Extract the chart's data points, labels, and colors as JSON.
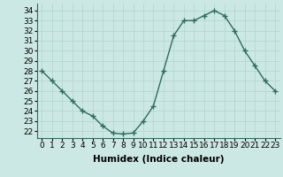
{
  "x": [
    0,
    1,
    2,
    3,
    4,
    5,
    6,
    7,
    8,
    9,
    10,
    11,
    12,
    13,
    14,
    15,
    16,
    17,
    18,
    19,
    20,
    21,
    22,
    23
  ],
  "y": [
    28,
    27,
    26,
    25,
    24,
    23.5,
    22.5,
    21.8,
    21.7,
    21.8,
    23,
    24.5,
    28,
    31.5,
    33,
    33,
    33.5,
    34,
    33.5,
    32,
    30,
    28.5,
    27,
    26
  ],
  "line_color": "#2e6b5e",
  "marker": "+",
  "marker_size": 4,
  "marker_color": "#2e6b5e",
  "bg_color": "#cce8e4",
  "grid_color": "#b0d4ce",
  "xlabel": "Humidex (Indice chaleur)",
  "xlim": [
    -0.5,
    23.5
  ],
  "ylim": [
    21.3,
    34.7
  ],
  "yticks": [
    22,
    23,
    24,
    25,
    26,
    27,
    28,
    29,
    30,
    31,
    32,
    33,
    34
  ],
  "xticks": [
    0,
    1,
    2,
    3,
    4,
    5,
    6,
    7,
    8,
    9,
    10,
    11,
    12,
    13,
    14,
    15,
    16,
    17,
    18,
    19,
    20,
    21,
    22,
    23
  ],
  "xlabel_fontsize": 7.5,
  "tick_fontsize": 6.5,
  "line_width": 1.0
}
